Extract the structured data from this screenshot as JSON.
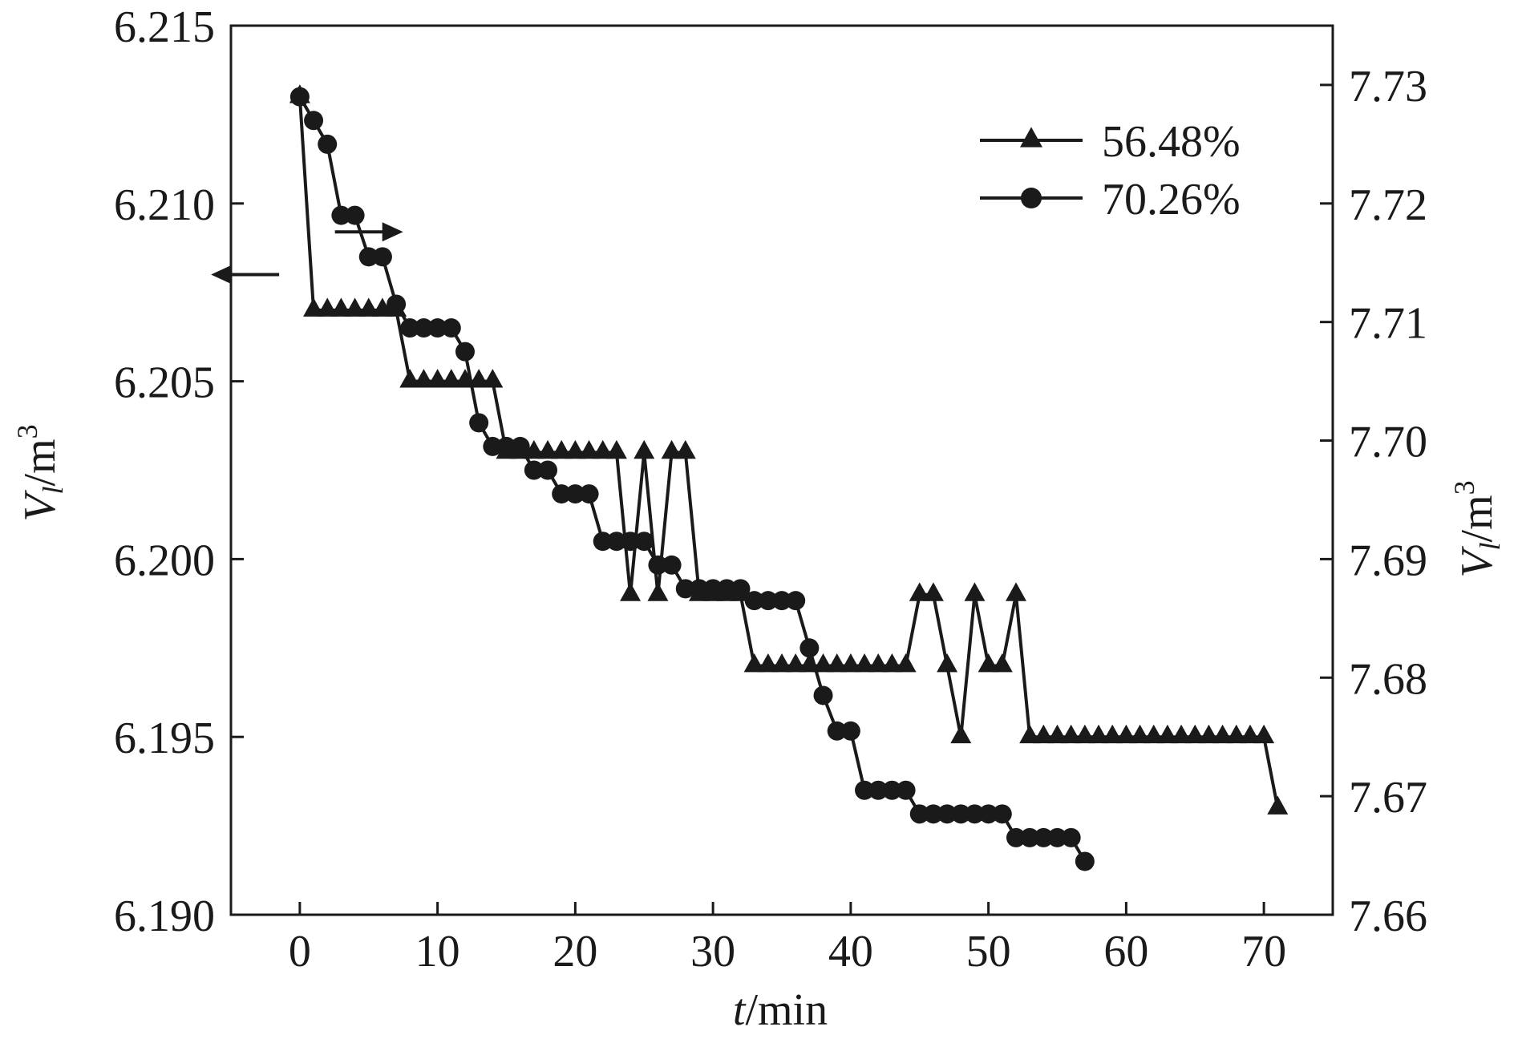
{
  "chart_data": {
    "type": "line",
    "xlabel": {
      "italic": "t",
      "rest": "/min"
    },
    "ylabel_left": {
      "italic": "V",
      "sub": "l",
      "rest": "/m",
      "sup": "3"
    },
    "ylabel_right": {
      "italic": "V",
      "sub": "l",
      "rest": "/m",
      "sup": "3"
    },
    "xlim": [
      -5,
      75
    ],
    "ylim_left": [
      6.19,
      6.215
    ],
    "ylim_right": [
      7.66,
      7.735
    ],
    "x_ticks": [
      0,
      10,
      20,
      30,
      40,
      50,
      60,
      70
    ],
    "x_tick_labels": [
      "0",
      "10",
      "20",
      "30",
      "40",
      "50",
      "60",
      "70"
    ],
    "y_left_ticks": [
      6.19,
      6.195,
      6.2,
      6.205,
      6.21,
      6.215
    ],
    "y_left_tick_labels": [
      "6.190",
      "6.195",
      "6.200",
      "6.205",
      "6.210",
      "6.215"
    ],
    "y_right_ticks": [
      7.66,
      7.67,
      7.68,
      7.69,
      7.7,
      7.71,
      7.72,
      7.73
    ],
    "y_right_tick_labels": [
      "7.66",
      "7.67",
      "7.68",
      "7.69",
      "7.70",
      "7.71",
      "7.72",
      "7.73"
    ],
    "legend_position": "top-right",
    "grid": false,
    "annotations": [
      {
        "type": "arrow",
        "direction": "left",
        "meaning": "left-axis",
        "at_x": -1.5,
        "at_y_left": 6.208
      },
      {
        "type": "arrow",
        "direction": "right",
        "meaning": "right-axis",
        "at_x": 7.5,
        "at_y_left": 6.2092
      }
    ],
    "series": [
      {
        "name": "56.48%",
        "marker": "triangle",
        "axis": "left",
        "x": [
          0,
          1,
          2,
          3,
          4,
          5,
          6,
          7,
          8,
          9,
          10,
          11,
          12,
          13,
          14,
          15,
          16,
          17,
          18,
          19,
          20,
          21,
          22,
          23,
          24,
          25,
          26,
          27,
          28,
          29,
          30,
          31,
          32,
          33,
          34,
          35,
          36,
          37,
          38,
          39,
          40,
          41,
          42,
          43,
          44,
          45,
          46,
          47,
          48,
          49,
          50,
          51,
          52,
          53,
          54,
          55,
          56,
          57,
          58,
          59,
          60,
          61,
          62,
          63,
          64,
          65,
          66,
          67,
          68,
          69,
          70,
          71
        ],
        "y": [
          6.213,
          6.207,
          6.207,
          6.207,
          6.207,
          6.207,
          6.207,
          6.207,
          6.205,
          6.205,
          6.205,
          6.205,
          6.205,
          6.205,
          6.205,
          6.203,
          6.203,
          6.203,
          6.203,
          6.203,
          6.203,
          6.203,
          6.203,
          6.203,
          6.199,
          6.203,
          6.199,
          6.203,
          6.203,
          6.199,
          6.199,
          6.199,
          6.199,
          6.197,
          6.197,
          6.197,
          6.197,
          6.197,
          6.197,
          6.197,
          6.197,
          6.197,
          6.197,
          6.197,
          6.197,
          6.199,
          6.199,
          6.197,
          6.195,
          6.199,
          6.197,
          6.197,
          6.199,
          6.195,
          6.195,
          6.195,
          6.195,
          6.195,
          6.195,
          6.195,
          6.195,
          6.195,
          6.195,
          6.195,
          6.195,
          6.195,
          6.195,
          6.195,
          6.195,
          6.195,
          6.195,
          6.193
        ]
      },
      {
        "name": "70.26%",
        "marker": "circle",
        "axis": "right",
        "x": [
          0,
          1,
          2,
          3,
          4,
          5,
          6,
          7,
          8,
          9,
          10,
          11,
          12,
          13,
          14,
          15,
          16,
          17,
          18,
          19,
          20,
          21,
          22,
          23,
          24,
          25,
          26,
          27,
          28,
          29,
          30,
          31,
          32,
          33,
          34,
          35,
          36,
          37,
          38,
          39,
          40,
          41,
          42,
          43,
          44,
          45,
          46,
          47,
          48,
          49,
          50,
          51,
          52,
          53,
          54,
          55,
          56,
          57
        ],
        "y": [
          7.729,
          7.727,
          7.725,
          7.719,
          7.719,
          7.7155,
          7.7155,
          7.7115,
          7.7095,
          7.7095,
          7.7095,
          7.7095,
          7.7075,
          7.7015,
          7.6995,
          7.6995,
          7.6995,
          7.6975,
          7.6975,
          7.6955,
          7.6955,
          7.6955,
          7.6915,
          7.6915,
          7.6915,
          7.6915,
          7.6895,
          7.6895,
          7.6875,
          7.6875,
          7.6875,
          7.6875,
          7.6875,
          7.6865,
          7.6865,
          7.6865,
          7.6865,
          7.6825,
          7.6785,
          7.6755,
          7.6755,
          7.6705,
          7.6705,
          7.6705,
          7.6705,
          7.6685,
          7.6685,
          7.6685,
          7.6685,
          7.6685,
          7.6685,
          7.6685,
          7.6665,
          7.6665,
          7.6665,
          7.6665,
          7.6665,
          7.6645
        ]
      }
    ]
  }
}
